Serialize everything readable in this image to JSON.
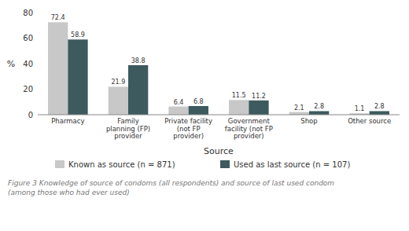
{
  "chart_data": {
    "type": "bar",
    "categories": [
      "Pharmacy",
      "Family\nplanning (FP)\nprovider",
      "Private facility\n(not FP\nprovider)",
      "Government\nfacility (not FP\nprovider)",
      "Shop",
      "Other source"
    ],
    "series": [
      {
        "name": "Known as source (n = 871)",
        "color": "#c8c8c8",
        "values": [
          72.4,
          21.9,
          6.4,
          11.5,
          2.1,
          1.1
        ]
      },
      {
        "name": "Used as last source (n = 107)",
        "color": "#3d5a5e",
        "values": [
          58.9,
          38.8,
          6.8,
          11.2,
          2.8,
          2.8
        ]
      }
    ],
    "y_label": "%",
    "x_label": "Source",
    "caption": "Figure 3 Knowledge of source of condoms (all respondents) and source of last used condom\n(among those who had ever used)",
    "ylim": [
      0,
      80
    ],
    "yticks": [
      0,
      20,
      40,
      60,
      80
    ],
    "data_labels": true,
    "grid": false
  }
}
